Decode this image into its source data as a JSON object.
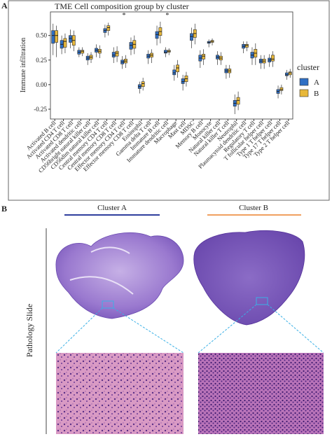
{
  "panel_labels": [
    "A",
    "B"
  ],
  "chart_data": {
    "type": "box",
    "title": "TME Cell composition group by cluster",
    "y_label": "Immune infiltration",
    "legend_title": "cluster",
    "categories": [
      "Activated B cell",
      "Activated CD4 T cell",
      "Activated CD8 T cell",
      "Activated dendritic cell",
      "CD56bright natural killer cell",
      "CD56dim natural killer cell",
      "Central memory CD4 T cell",
      "Central memory CD8 T cell",
      "Effector memory CD4 T cell",
      "Effector memory CD8 T cell",
      "Eosinophil",
      "Gamma delta T cell",
      "Immature B cell",
      "Immature dendritic cell",
      "Macrophage",
      "Mast cell",
      "MDSC",
      "Memory B cell",
      "Monocyte",
      "Natural killer cell",
      "Natural killer T cell",
      "Neutrophil",
      "Plasmacytoid dendritic cell",
      "Regulatory T cell",
      "T follicular helper cell",
      "Type 1 T helper cell",
      "Type 17 T helper cell",
      "Type 2 T helper cell"
    ],
    "significance": [
      null,
      null,
      null,
      null,
      null,
      null,
      null,
      null,
      "*",
      null,
      null,
      null,
      null,
      "*",
      null,
      null,
      null,
      null,
      null,
      null,
      null,
      null,
      null,
      null,
      null,
      null,
      null,
      null
    ],
    "ylim": [
      -0.35,
      0.74
    ],
    "yticks": [
      -0.25,
      {
        "value": 0,
        "label": "0.00"
      },
      0.25,
      {
        "value": 0.5,
        "label": "0.50"
      }
    ],
    "series": [
      {
        "name": "A",
        "color": "#2f6fc4",
        "whisker_low": [
          0.3,
          0.31,
          0.37,
          0.28,
          0.2,
          0.28,
          0.48,
          0.22,
          0.16,
          0.3,
          -0.09,
          0.21,
          0.4,
          0.28,
          0.04,
          -0.06,
          0.37,
          0.17,
          0.38,
          0.2,
          0.06,
          -0.3,
          0.32,
          0.2,
          0.16,
          0.18,
          -0.14,
          0.05
        ],
        "q1": [
          0.42,
          0.37,
          0.43,
          0.31,
          0.25,
          0.33,
          0.53,
          0.28,
          0.21,
          0.36,
          -0.04,
          0.27,
          0.47,
          0.32,
          0.1,
          0.01,
          0.45,
          0.24,
          0.42,
          0.26,
          0.12,
          -0.22,
          0.37,
          0.27,
          0.22,
          0.23,
          -0.09,
          0.09
        ],
        "median": [
          0.5,
          0.41,
          0.47,
          0.33,
          0.27,
          0.35,
          0.55,
          0.3,
          0.23,
          0.4,
          -0.02,
          0.29,
          0.51,
          0.33,
          0.12,
          0.03,
          0.49,
          0.27,
          0.43,
          0.28,
          0.14,
          -0.19,
          0.39,
          0.3,
          0.24,
          0.25,
          -0.07,
          0.1
        ],
        "q3": [
          0.55,
          0.45,
          0.5,
          0.35,
          0.29,
          0.37,
          0.57,
          0.33,
          0.25,
          0.43,
          0,
          0.31,
          0.54,
          0.35,
          0.15,
          0.06,
          0.52,
          0.3,
          0.44,
          0.3,
          0.16,
          -0.16,
          0.41,
          0.33,
          0.26,
          0.27,
          -0.05,
          0.12
        ],
        "whisker_high": [
          0.62,
          0.5,
          0.56,
          0.38,
          0.32,
          0.41,
          0.61,
          0.38,
          0.29,
          0.48,
          0.03,
          0.35,
          0.6,
          0.38,
          0.2,
          0.1,
          0.58,
          0.35,
          0.46,
          0.34,
          0.2,
          -0.1,
          0.44,
          0.38,
          0.3,
          0.31,
          -0.01,
          0.15
        ]
      },
      {
        "name": "B",
        "color": "#e8b83a",
        "whisker_low": [
          0.28,
          0.32,
          0.34,
          0.29,
          0.22,
          0.27,
          0.5,
          0.23,
          0.17,
          0.31,
          -0.06,
          0.22,
          0.42,
          0.3,
          0.07,
          -0.02,
          0.41,
          0.2,
          0.4,
          0.2,
          0.07,
          -0.26,
          0.34,
          0.2,
          0.16,
          0.18,
          -0.1,
          0.07
        ],
        "q1": [
          0.43,
          0.38,
          0.4,
          0.32,
          0.26,
          0.32,
          0.55,
          0.29,
          0.22,
          0.37,
          -0.02,
          0.28,
          0.5,
          0.33,
          0.13,
          0.03,
          0.48,
          0.26,
          0.43,
          0.25,
          0.12,
          -0.2,
          0.38,
          0.28,
          0.22,
          0.24,
          -0.06,
          0.1
        ],
        "median": [
          0.5,
          0.44,
          0.45,
          0.34,
          0.28,
          0.34,
          0.58,
          0.32,
          0.24,
          0.41,
          0.01,
          0.3,
          0.54,
          0.34,
          0.17,
          0.06,
          0.52,
          0.29,
          0.44,
          0.27,
          0.14,
          -0.16,
          0.4,
          0.32,
          0.24,
          0.26,
          -0.05,
          0.12
        ],
        "q3": [
          0.55,
          0.47,
          0.5,
          0.35,
          0.3,
          0.36,
          0.6,
          0.34,
          0.26,
          0.45,
          0.03,
          0.32,
          0.58,
          0.35,
          0.2,
          0.09,
          0.56,
          0.31,
          0.45,
          0.29,
          0.16,
          -0.13,
          0.41,
          0.36,
          0.26,
          0.3,
          -0.03,
          0.13
        ],
        "whisker_high": [
          0.6,
          0.52,
          0.55,
          0.38,
          0.33,
          0.4,
          0.63,
          0.39,
          0.3,
          0.5,
          0.07,
          0.36,
          0.64,
          0.37,
          0.25,
          0.13,
          0.62,
          0.36,
          0.47,
          0.33,
          0.2,
          -0.07,
          0.44,
          0.42,
          0.3,
          0.34,
          0,
          0.16
        ]
      }
    ],
    "legend": "right",
    "grid": false
  },
  "panel_b": {
    "cluster_a": "Cluster A",
    "cluster_b": "Cluster B",
    "y_label": "Pathology Slide"
  }
}
